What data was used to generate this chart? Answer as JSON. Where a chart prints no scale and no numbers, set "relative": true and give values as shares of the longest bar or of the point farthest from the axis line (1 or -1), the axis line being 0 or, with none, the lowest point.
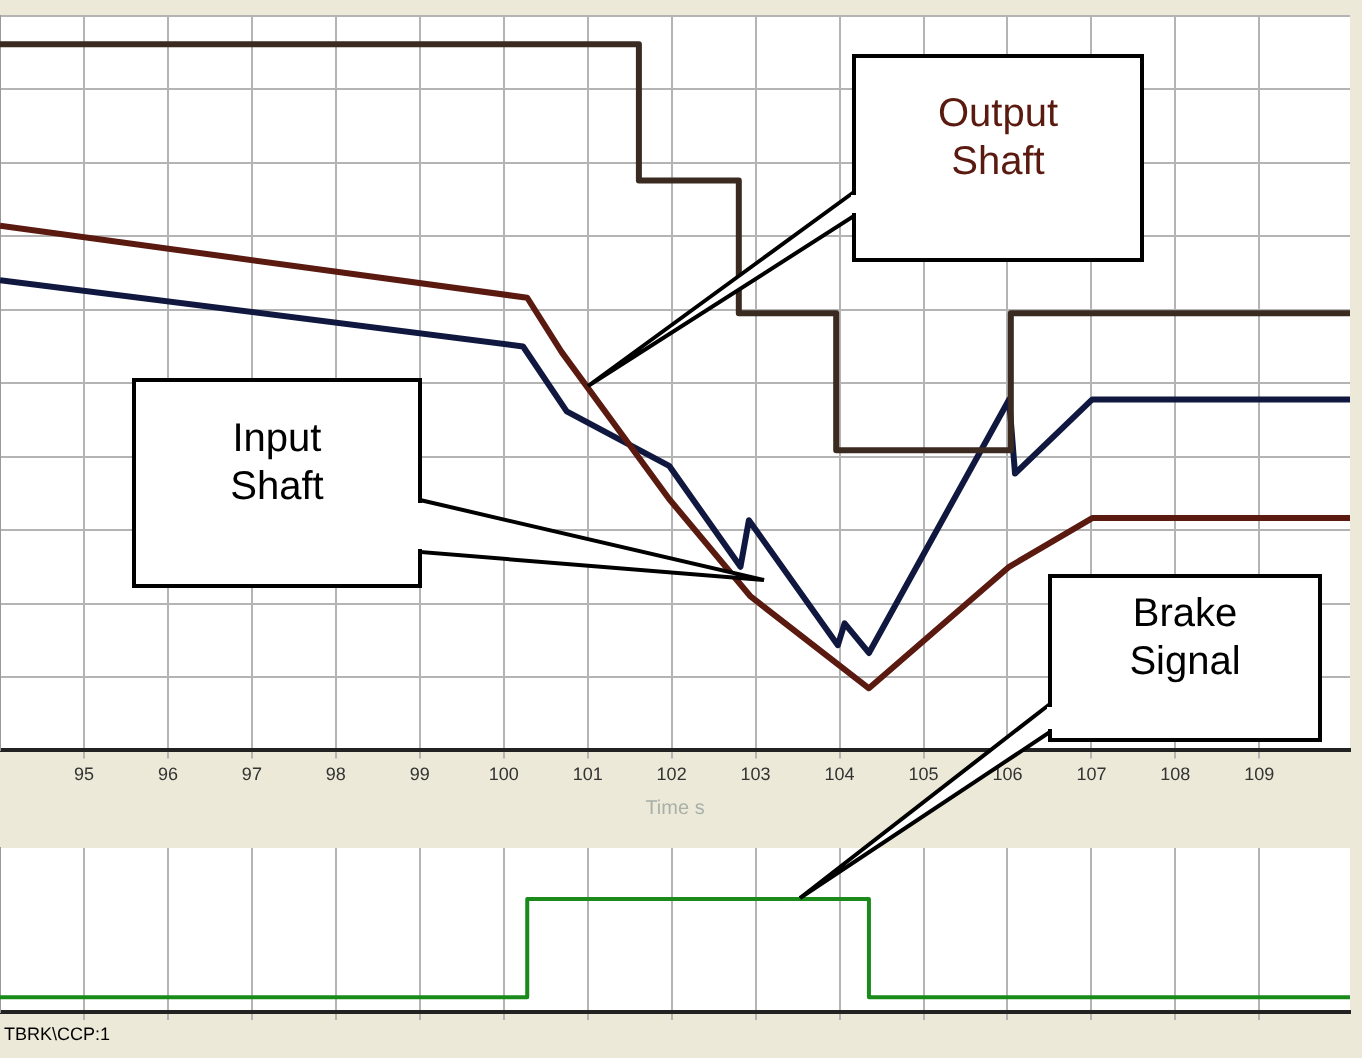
{
  "chart_data": [
    {
      "type": "line",
      "relative": true,
      "xlabel": "Time s",
      "xlim": [
        94,
        110.08
      ],
      "xticks": [
        95,
        96,
        97,
        98,
        99,
        100,
        101,
        102,
        103,
        104,
        105,
        106,
        107,
        108,
        109
      ],
      "grid": true,
      "legend": false,
      "annotations": [
        "TBRK\\CCP:1"
      ],
      "series": [
        {
          "type": "step",
          "color": "#3a2a20",
          "x": [
            94,
            101.61,
            102.8,
            103.96,
            106.04,
            110.08
          ],
          "values": [
            1,
            0.807,
            0.619,
            0.425,
            0.619,
            0.619
          ]
        },
        {
          "name": "Output Shaft",
          "color": "#5a1a10",
          "x": [
            94,
            100.28,
            100.69,
            101.97,
            102.94,
            104.35,
            106.02,
            107.01,
            110.08
          ],
          "values": [
            0.743,
            0.641,
            0.564,
            0.356,
            0.218,
            0.088,
            0.26,
            0.329,
            0.329
          ]
        },
        {
          "name": "Input Shaft",
          "color": "#101840",
          "x": [
            94,
            100.23,
            100.75,
            101.97,
            102.82,
            102.92,
            103.98,
            104.06,
            104.35,
            106.02,
            106.09,
            107.01,
            110.08
          ],
          "values": [
            0.666,
            0.572,
            0.48,
            0.403,
            0.26,
            0.326,
            0.149,
            0.18,
            0.138,
            0.497,
            0.392,
            0.497,
            0.497
          ]
        }
      ]
    },
    {
      "type": "step",
      "relative": true,
      "xlim": [
        94,
        110.08
      ],
      "xticks": [
        95,
        96,
        97,
        98,
        99,
        100,
        101,
        102,
        103,
        104,
        105,
        106,
        107,
        108,
        109
      ],
      "grid": "x",
      "legend": false,
      "tick_labels": false,
      "series": [
        {
          "name": "Brake Signal",
          "color": "#1a8a1a",
          "x": [
            94,
            100.28,
            104.35,
            110.08
          ],
          "values": [
            0.13,
            1,
            0.13,
            0.13
          ]
        }
      ]
    }
  ]
}
